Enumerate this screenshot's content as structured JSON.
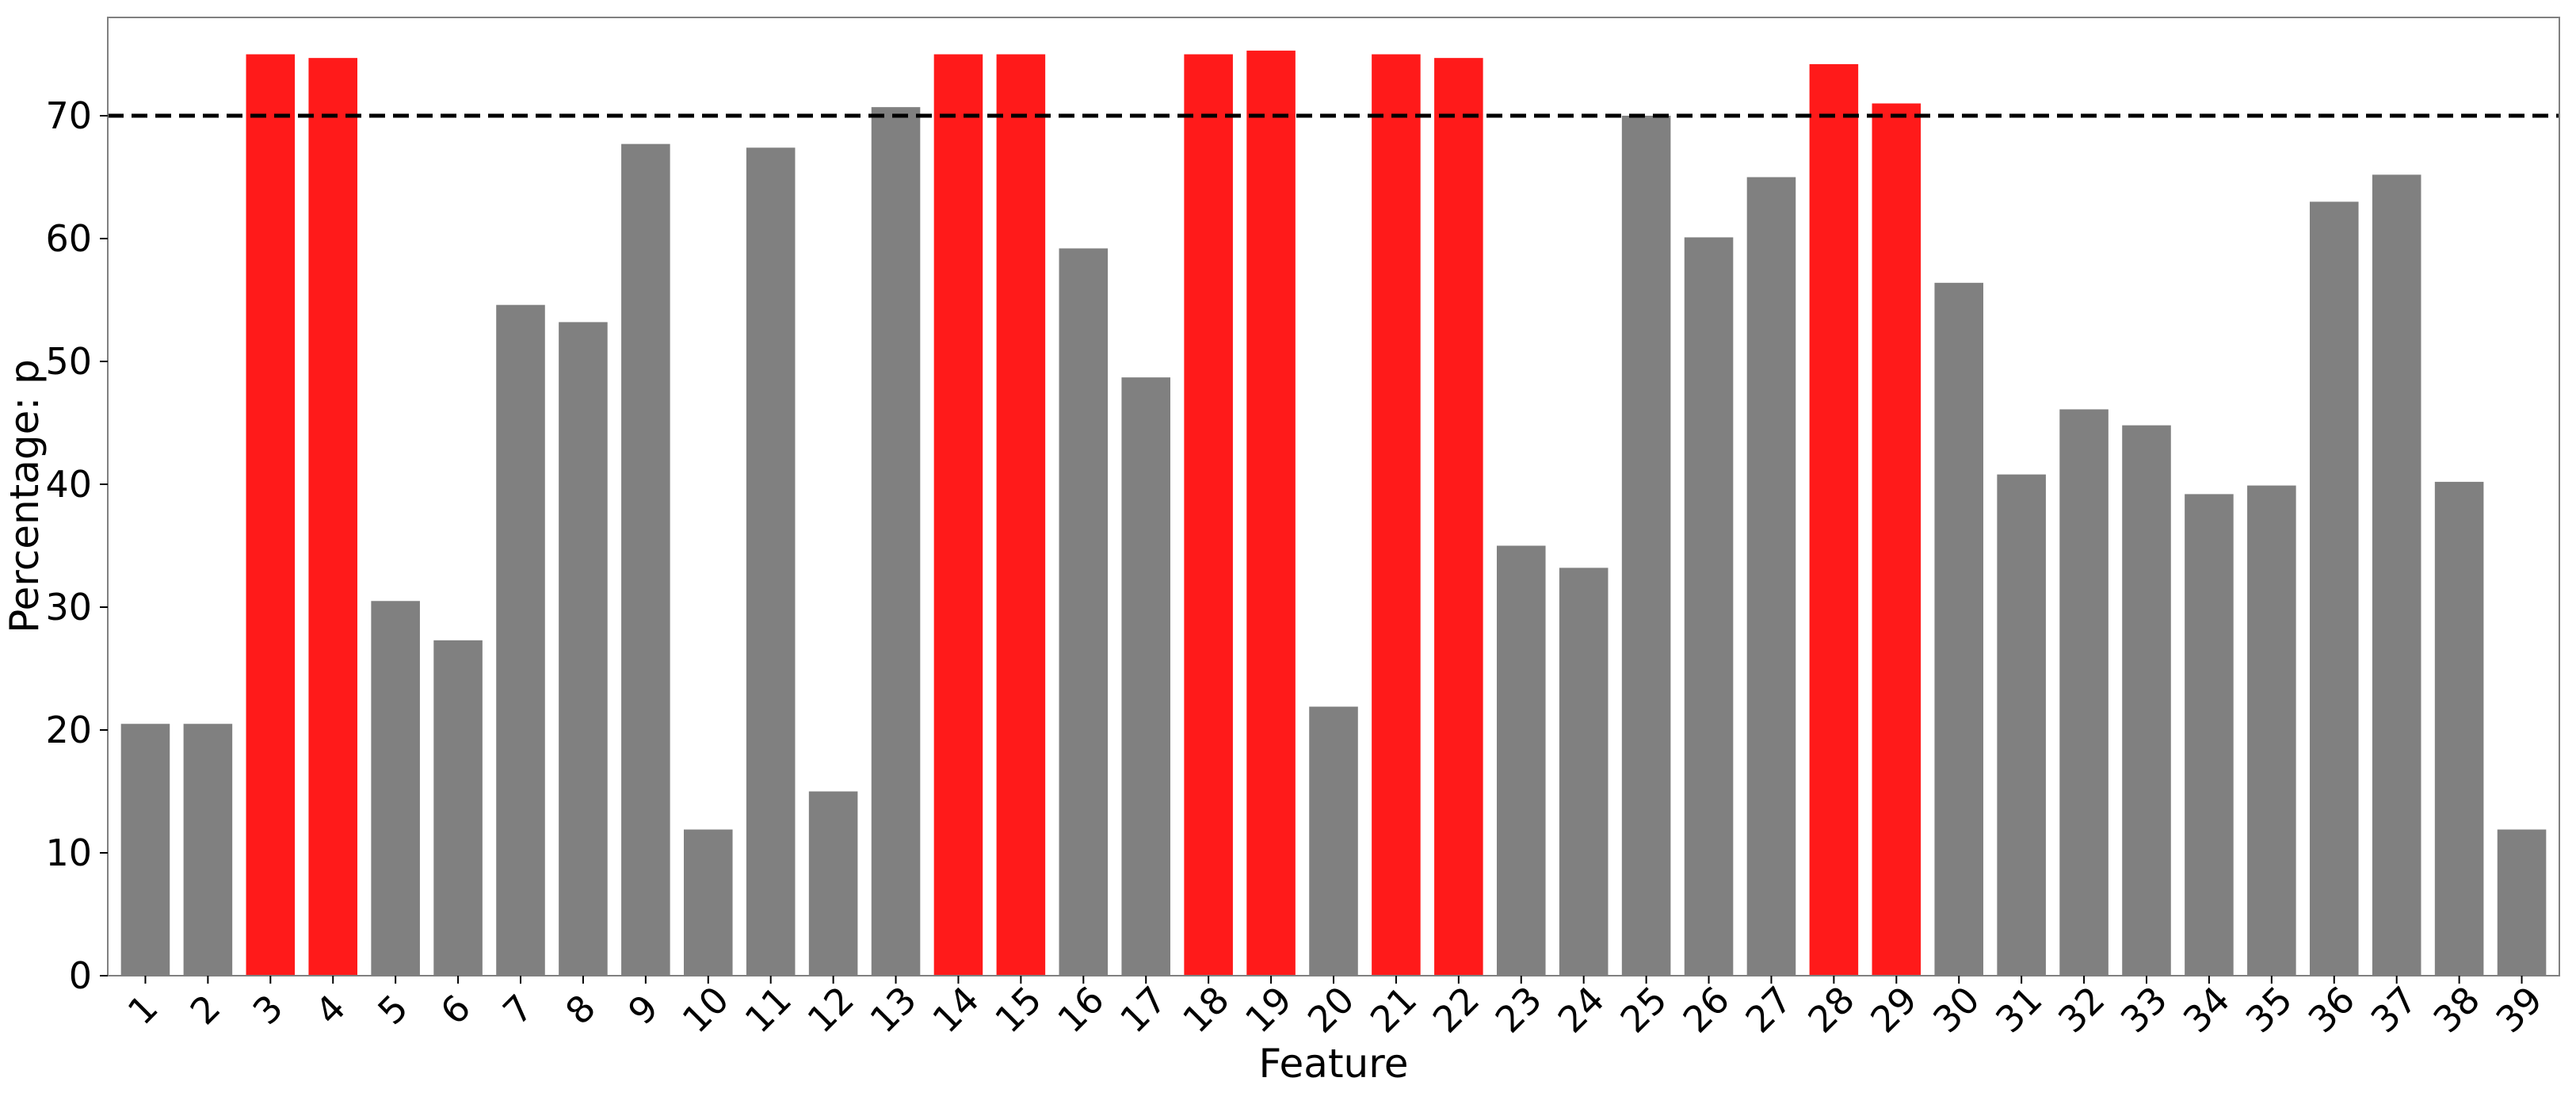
{
  "chart_data": {
    "type": "bar",
    "title": "",
    "xlabel": "Feature",
    "ylabel": "Percentage: p",
    "ylim": [
      0,
      78
    ],
    "yticks": [
      0,
      10,
      20,
      30,
      40,
      50,
      60,
      70
    ],
    "categories": [
      "1",
      "2",
      "3",
      "4",
      "5",
      "6",
      "7",
      "8",
      "9",
      "10",
      "11",
      "12",
      "13",
      "14",
      "15",
      "16",
      "17",
      "18",
      "19",
      "20",
      "21",
      "22",
      "23",
      "24",
      "25",
      "26",
      "27",
      "28",
      "29",
      "30",
      "31",
      "32",
      "33",
      "34",
      "35",
      "36",
      "37",
      "38",
      "39"
    ],
    "values": [
      20.5,
      20.5,
      75.0,
      74.7,
      30.5,
      27.3,
      54.6,
      53.2,
      67.7,
      11.9,
      67.4,
      15.0,
      70.7,
      75.0,
      75.0,
      59.2,
      48.7,
      75.0,
      75.3,
      21.9,
      75.0,
      74.7,
      35.0,
      33.2,
      70.0,
      60.1,
      65.0,
      74.2,
      71.0,
      56.4,
      40.8,
      46.1,
      44.8,
      39.2,
      39.9,
      63.0,
      65.2,
      40.2,
      11.9
    ],
    "highlighted": [
      false,
      false,
      true,
      true,
      false,
      false,
      false,
      false,
      false,
      false,
      false,
      false,
      false,
      true,
      true,
      false,
      false,
      true,
      true,
      false,
      true,
      true,
      false,
      false,
      false,
      false,
      false,
      true,
      true,
      false,
      false,
      false,
      false,
      false,
      false,
      false,
      false,
      false,
      false
    ],
    "threshold": 70,
    "threshold_style": "dashed",
    "grid": false,
    "legend": "none",
    "colors": {
      "default_bar": "#808080",
      "highlight_bar": "#ff1a1a",
      "threshold_line": "#000000",
      "axes": "#000000",
      "frame": "#808080"
    }
  }
}
